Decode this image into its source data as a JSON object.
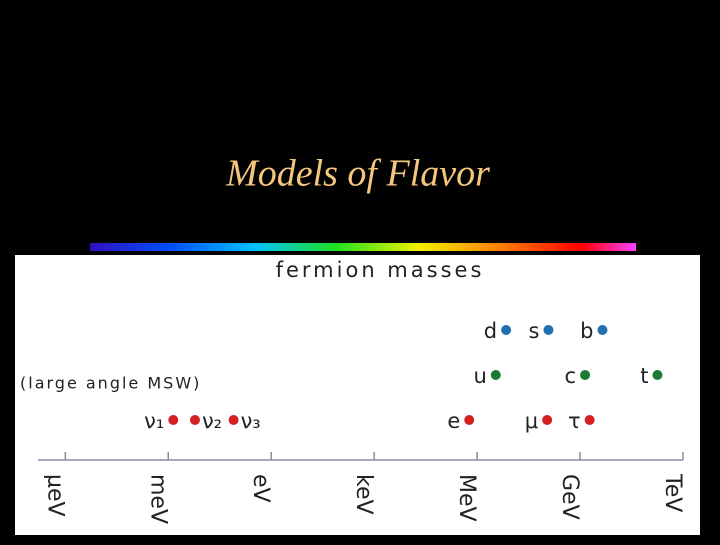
{
  "slide_title": "Models of Flavor",
  "chart_data": {
    "type": "scatter",
    "title": "fermion masses",
    "annotation": "(large angle MSW)",
    "xscale": "log",
    "xlim": [
      1.6e-07,
      1000000000000.0
    ],
    "xticks": [
      {
        "value": 1e-06,
        "label": "μeV"
      },
      {
        "value": 0.001,
        "label": "meV"
      },
      {
        "value": 1,
        "label": "eV"
      },
      {
        "value": 1000,
        "label": "keV"
      },
      {
        "value": 1000000,
        "label": "MeV"
      },
      {
        "value": 1000000000,
        "label": "GeV"
      },
      {
        "value": 1000000000000,
        "label": "TeV"
      }
    ],
    "series": [
      {
        "color": "#2270b0",
        "labels": [
          "d",
          "s",
          "b"
        ],
        "values": [
          7000000,
          120000000,
          4500000000
        ]
      },
      {
        "color": "#1a7a36",
        "labels": [
          "u",
          "c",
          "t"
        ],
        "values": [
          3500000,
          1400000000,
          180000000000
        ]
      },
      {
        "color": "#d42020",
        "labels": [
          "ν₁",
          "ν₂",
          "ν₃",
          "e",
          "μ",
          "τ"
        ],
        "values": [
          0.0014,
          0.006,
          0.08,
          590000,
          110000000,
          1900000000
        ]
      }
    ]
  }
}
